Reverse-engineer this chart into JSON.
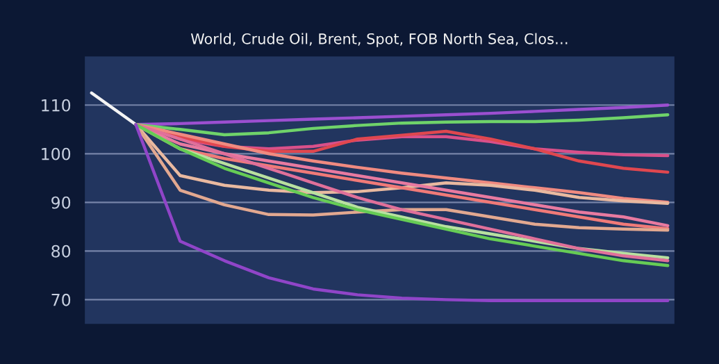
{
  "chart_data": {
    "type": "line",
    "title": "World, Crude Oil, Brent, Spot, FOB North Sea, Clos…",
    "categories": [
      null,
      null,
      null,
      null,
      null,
      null,
      null,
      null,
      null,
      null,
      null,
      null,
      null,
      null
    ],
    "ylim": [
      65,
      120
    ],
    "yticks": [
      70,
      80,
      90,
      100,
      110
    ],
    "grid": "y",
    "tick_labels": "y",
    "marker": "none",
    "line_style": "solid",
    "series": [
      {
        "color": "#f4f4f4",
        "values": [
          112.5,
          106,
          null,
          null,
          null,
          null,
          null,
          null,
          null,
          null,
          null,
          null,
          null,
          null
        ]
      },
      {
        "color": "#9b4fd0",
        "values": [
          null,
          106,
          106.2,
          106.5,
          106.8,
          107.1,
          107.4,
          107.7,
          108,
          108.3,
          108.7,
          109.1,
          109.5,
          110
        ]
      },
      {
        "color": "#6fd36a",
        "values": [
          null,
          106,
          105,
          103.9,
          104.3,
          105.2,
          105.8,
          106.3,
          106.5,
          106.6,
          106.6,
          106.9,
          107.4,
          108
        ]
      },
      {
        "color": "#d9508a",
        "values": [
          null,
          106,
          103,
          101.5,
          101,
          101.5,
          102.8,
          103.5,
          103.5,
          102.5,
          101,
          100.3,
          99.8,
          99.6
        ]
      },
      {
        "color": "#e0474f",
        "values": [
          null,
          106,
          103.5,
          101.5,
          100.5,
          100.5,
          103,
          103.8,
          104.6,
          103,
          101,
          98.5,
          97,
          96.2
        ]
      },
      {
        "color": "#f08a80",
        "values": [
          null,
          106,
          104,
          102,
          100,
          98.5,
          97.2,
          96,
          95,
          94,
          93,
          92,
          90.8,
          90
        ]
      },
      {
        "color": "#e9b9a0",
        "values": [
          null,
          106,
          95.5,
          93.5,
          92.5,
          92,
          92.2,
          93,
          94,
          93.5,
          92.5,
          91,
          90.3,
          89.8
        ]
      },
      {
        "color": "#e87aa0",
        "values": [
          null,
          106,
          102,
          100,
          98.5,
          97,
          95.5,
          94,
          92.5,
          91,
          89.5,
          88,
          87,
          85.2
        ]
      },
      {
        "color": "#f07a78",
        "values": [
          null,
          106,
          101,
          99,
          97.5,
          96,
          94.5,
          93,
          91.5,
          90,
          88.5,
          87,
          85.5,
          84.6
        ]
      },
      {
        "color": "#e2a890",
        "values": [
          null,
          106,
          92.5,
          89.5,
          87.5,
          87.4,
          88,
          88.5,
          88.5,
          87,
          85.5,
          84.8,
          84.5,
          84.3
        ]
      },
      {
        "color": "#b8e0a0",
        "values": [
          null,
          106,
          101,
          98,
          95,
          92,
          89,
          87,
          85,
          83.5,
          82,
          80.5,
          79.5,
          78.6
        ]
      },
      {
        "color": "#e0709a",
        "values": [
          null,
          106,
          103,
          100,
          97,
          94,
          91,
          88.5,
          86.5,
          84.5,
          82.5,
          80.5,
          79,
          78
        ]
      },
      {
        "color": "#66cc55",
        "values": [
          null,
          106,
          101,
          97,
          94,
          91,
          88.5,
          86.5,
          84.5,
          82.5,
          81,
          79.5,
          78,
          77
        ]
      },
      {
        "color": "#9045c8",
        "values": [
          null,
          106,
          82,
          78,
          74.5,
          72.2,
          71,
          70.3,
          70,
          69.8,
          69.8,
          69.8,
          69.8,
          69.8
        ]
      }
    ]
  }
}
